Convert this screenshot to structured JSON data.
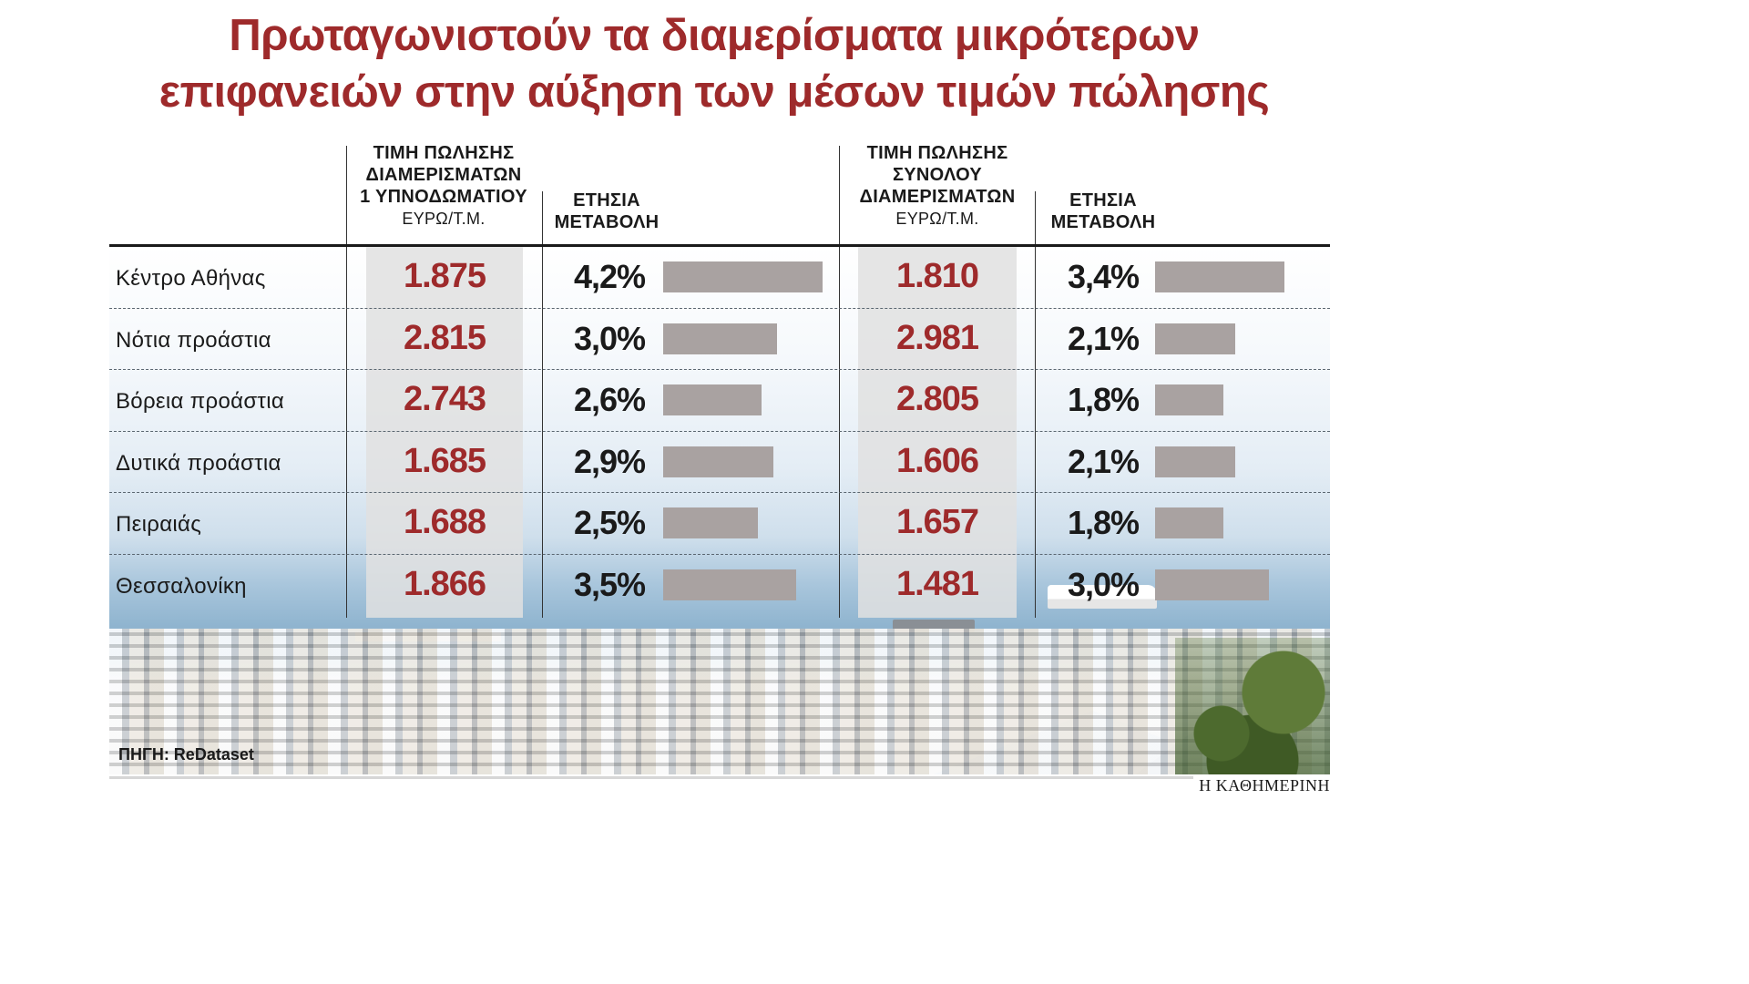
{
  "title": {
    "line1": "Πρωταγωνιστούν τα διαμερίσματα μικρότερων",
    "line2": "επιφανειών στην αύξηση των μέσων τιμών πώλησης"
  },
  "headers": {
    "col1": [
      "ΤΙΜΗ ΠΩΛΗΣΗΣ",
      "ΔΙΑΜΕΡΙΣΜΑΤΩΝ",
      "1 ΥΠΝΟΔΩΜΑΤΙΟΥ"
    ],
    "col1_unit": "ΕΥΡΩ/Τ.Μ.",
    "col2": [
      "ΕΤΗΣΙΑ",
      "ΜΕΤΑΒΟΛΗ"
    ],
    "col3": [
      "ΤΙΜΗ ΠΩΛΗΣΗΣ",
      "ΣΥΝΟΛΟΥ",
      "ΔΙΑΜΕΡΙΣΜΑΤΩΝ"
    ],
    "col3_unit": "ΕΥΡΩ/Τ.Μ.",
    "col4": [
      "ΕΤΗΣΙΑ",
      "ΜΕΤΑΒΟΛΗ"
    ]
  },
  "chart_data": {
    "type": "table",
    "columns": [
      "ΤΙΜΗ ΠΩΛΗΣΗΣ ΔΙΑΜΕΡΙΣΜΑΤΩΝ 1 ΥΠΝΟΔΩΜΑΤΙΟΥ ΕΥΡΩ/Τ.Μ.",
      "ΕΤΗΣΙΑ ΜΕΤΑΒΟΛΗ",
      "ΤΙΜΗ ΠΩΛΗΣΗΣ ΣΥΝΟΛΟΥ ΔΙΑΜΕΡΙΣΜΑΤΩΝ ΕΥΡΩ/Τ.Μ.",
      "ΕΤΗΣΙΑ ΜΕΤΑΒΟΛΗ"
    ],
    "rows": [
      {
        "region": "Κέντρο Αθήνας",
        "price_1br": "1.875",
        "change_1br": "4,2%",
        "change_1br_value": 4.2,
        "price_all": "1.810",
        "change_all": "3,4%",
        "change_all_value": 3.4
      },
      {
        "region": "Νότια προάστια",
        "price_1br": "2.815",
        "change_1br": "3,0%",
        "change_1br_value": 3.0,
        "price_all": "2.981",
        "change_all": "2,1%",
        "change_all_value": 2.1
      },
      {
        "region": "Βόρεια προάστια",
        "price_1br": "2.743",
        "change_1br": "2,6%",
        "change_1br_value": 2.6,
        "price_all": "2.805",
        "change_all": "1,8%",
        "change_all_value": 1.8
      },
      {
        "region": "Δυτικά προάστια",
        "price_1br": "1.685",
        "change_1br": "2,9%",
        "change_1br_value": 2.9,
        "price_all": "1.606",
        "change_all": "2,1%",
        "change_all_value": 2.1
      },
      {
        "region": "Πειραιάς",
        "price_1br": "1.688",
        "change_1br": "2,5%",
        "change_1br_value": 2.5,
        "price_all": "1.657",
        "change_all": "1,8%",
        "change_all_value": 1.8
      },
      {
        "region": "Θεσσαλονίκη",
        "price_1br": "1.866",
        "change_1br": "3,5%",
        "change_1br_value": 3.5,
        "price_all": "1.481",
        "change_all": "3,0%",
        "change_all_value": 3.0
      }
    ]
  },
  "colors": {
    "title": "#9e2a2b",
    "price": "#9e2a2b",
    "bar": "#a9a2a1"
  },
  "footer": {
    "source": "ΠΗΓΗ: ReDataset",
    "brand": "Η ΚΑΘΗΜΕΡΙΝΗ"
  }
}
